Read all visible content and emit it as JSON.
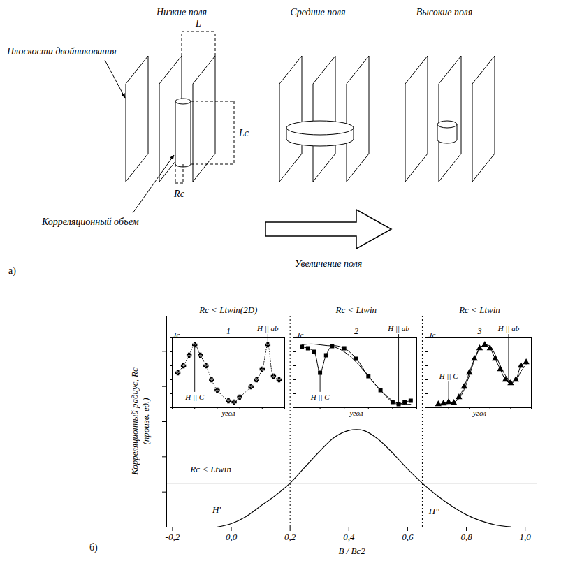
{
  "diagram": {
    "panel": "а)",
    "titles": [
      "Низкие поля",
      "Средние поля",
      "Высокие поля"
    ],
    "planes_label": "Плоскости двойникования",
    "volume_label": "Корреляционный объем",
    "arrow_label": "Увеличение поля",
    "dimension_labels": {
      "L": "L",
      "Lc": "Lc",
      "Rc": "Rc"
    }
  },
  "chart_data": [
    {
      "type": "line",
      "panel": "б)",
      "xlabel": "B / Bc2",
      "ylabel": "Корреляционный радиус, Rc (произв. ед.)",
      "x": [
        -0.05,
        0,
        0.05,
        0.1,
        0.15,
        0.2,
        0.25,
        0.3,
        0.35,
        0.4,
        0.45,
        0.5,
        0.55,
        0.6,
        0.65,
        0.7,
        0.75,
        0.8,
        0.85,
        0.9,
        0.95
      ],
      "values": [
        0,
        0.2,
        0.6,
        1.2,
        1.8,
        2.5,
        3.4,
        4.3,
        5.1,
        5.5,
        5.5,
        5.0,
        4.2,
        3.3,
        2.5,
        1.8,
        1.2,
        0.7,
        0.35,
        0.12,
        0.02
      ],
      "color": "#000000",
      "xlim": [
        -0.22,
        1.04
      ],
      "xticks": [
        {
          "value": -0.2,
          "label": "-0,2"
        },
        {
          "value": 0,
          "label": "0,0"
        },
        {
          "value": 0.2,
          "label": "0,2"
        },
        {
          "value": 0.4,
          "label": "0,4"
        },
        {
          "value": 0.6,
          "label": "0,6"
        },
        {
          "value": 0.8,
          "label": "0,8"
        },
        {
          "value": 1.0,
          "label": "1,0"
        }
      ],
      "ylim": [
        0,
        12
      ],
      "yticks": [
        0,
        2,
        4,
        6,
        8,
        10,
        12
      ],
      "tick_labels": "x",
      "threshold": {
        "value": 2.5,
        "label": "Rc < Ltwin",
        "x": -0.07,
        "label_y": 3.3
      },
      "region_bounds": [
        0.2,
        0.65
      ],
      "regions": [
        "Rc < Ltwin(2D)",
        "Rc < Ltwin",
        "Rc < Ltwin"
      ],
      "annotations": [
        {
          "text": "H'",
          "x": -0.05,
          "y": 1.0
        },
        {
          "text": "H''",
          "x": 0.69,
          "y": 0.9
        }
      ]
    },
    {
      "type": "line",
      "title": "1",
      "xlabel": "угол",
      "ylabel": "Jc",
      "x": [
        0.5,
        1,
        1.5,
        2,
        2.5,
        3,
        3.5,
        4,
        5,
        5.5,
        6,
        7,
        7.5,
        8,
        8.5,
        9,
        9.5
      ],
      "series": [
        {
          "color": "#000000",
          "marker": "cross",
          "line_style": "dotted",
          "values": [
            5,
            6,
            7.5,
            9,
            7.5,
            6,
            4,
            2.5,
            1,
            0.8,
            1.5,
            3,
            4,
            5.5,
            9,
            4.5,
            4
          ]
        }
      ],
      "xlim": [
        0,
        10
      ],
      "xticks": [
        0,
        2,
        4,
        6,
        8,
        10
      ],
      "ylim": [
        0,
        10
      ],
      "yticks": [
        0,
        2,
        4,
        6,
        8,
        10
      ],
      "tick_labels": false,
      "annotations": [
        {
          "text": "H || C",
          "x": 2,
          "y": 9,
          "label_y": 1.5
        },
        {
          "text": "H || ab",
          "x": 8.5,
          "y": 9,
          "label_y": 11.3
        }
      ]
    },
    {
      "type": "line",
      "title": "2",
      "xlabel": "угол",
      "ylabel": "Jc",
      "x": [
        0.5,
        1,
        1.5,
        2,
        2.5,
        3,
        4,
        5,
        6,
        7,
        8,
        8.5,
        9,
        9.5
      ],
      "series": [
        {
          "color": "#000000",
          "marker": "square",
          "line_style": "solid",
          "values": [
            8.7,
            8.5,
            8,
            5,
            7.5,
            8.8,
            8.5,
            7,
            4.5,
            2.5,
            0.8,
            0.5,
            0.8,
            1
          ]
        },
        {
          "color": "#000000",
          "line_style": "solid",
          "values": [
            9,
            9.1,
            9.1,
            9,
            8.9,
            8.8,
            8,
            6.5,
            4.5,
            2.5,
            1,
            0.6,
            0.5,
            0.5
          ]
        }
      ],
      "xlim": [
        0,
        10
      ],
      "xticks": [
        0,
        2,
        4,
        6,
        8,
        10
      ],
      "ylim": [
        0,
        10
      ],
      "yticks": [
        0,
        2,
        4,
        6,
        8,
        10
      ],
      "tick_labels": false,
      "annotations": [
        {
          "text": "H || C",
          "x": 2,
          "y": 5,
          "label_y": 1.5
        },
        {
          "text": "H || ab",
          "x": 8.5,
          "y": 0.5,
          "label_y": 11.3
        }
      ]
    },
    {
      "type": "line",
      "title": "3",
      "xlabel": "угол",
      "ylabel": "Jc",
      "x": [
        1,
        1.5,
        2,
        2.5,
        3,
        3.5,
        4,
        4.5,
        5,
        5.5,
        6,
        6.5,
        7,
        7.5,
        8,
        8.5,
        9,
        9.5
      ],
      "series": [
        {
          "color": "#000000",
          "marker": "triangle",
          "line_style": "solid",
          "values": [
            0.5,
            0.6,
            0.8,
            0.7,
            1.5,
            3,
            5,
            7,
            8.5,
            9,
            8.5,
            7,
            5.5,
            4,
            3.5,
            4,
            6,
            6.5
          ]
        },
        {
          "color": "#000000",
          "line_style": "solid",
          "values": [
            0.4,
            0.5,
            0.6,
            0.8,
            1.3,
            2.6,
            4.6,
            6.8,
            8.4,
            9,
            8.8,
            7.6,
            6,
            4.6,
            3.8,
            3.9,
            5.2,
            6.2
          ]
        }
      ],
      "xlim": [
        0,
        10
      ],
      "xticks": [
        0,
        2,
        4,
        6,
        8,
        10
      ],
      "ylim": [
        0,
        10
      ],
      "yticks": [
        0,
        2,
        4,
        6,
        8,
        10
      ],
      "tick_labels": false,
      "annotations": [
        {
          "text": "H || C",
          "x": 2,
          "y": 0.8,
          "label_y": 4.5
        },
        {
          "text": "H || ab",
          "x": 7.8,
          "y": 3.6,
          "label_y": 11.3
        }
      ]
    }
  ]
}
